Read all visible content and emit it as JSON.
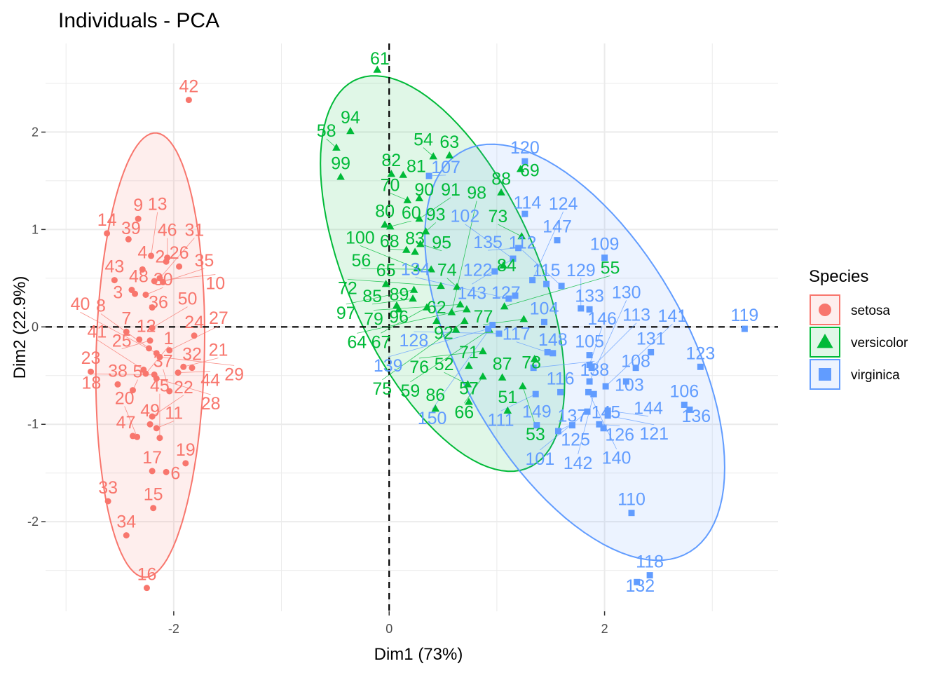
{
  "chart_data": {
    "type": "scatter",
    "title": "Individuals - PCA",
    "xlabel": "Dim1 (73%)",
    "ylabel": "Dim2 (22.9%)",
    "xlim": [
      -3.19,
      3.61
    ],
    "ylim": [
      -2.92,
      2.91
    ],
    "xticks": [
      "-2",
      "0",
      "2"
    ],
    "yticks": [
      "-2",
      "-1",
      "0",
      "1",
      "2"
    ],
    "grid": true,
    "reference_lines": {
      "x": 0,
      "y": 0,
      "style": "dashed"
    },
    "ellipses": "95% confidence per group",
    "legend": {
      "title": "Species",
      "position": "right"
    },
    "series": [
      {
        "name": "setosa",
        "color": "#F8766D",
        "shape": "circle",
        "points": [
          [
            "1",
            -2.26,
            -0.48
          ],
          [
            "2",
            -2.07,
            0.67
          ],
          [
            "3",
            -2.36,
            0.34
          ],
          [
            "4",
            -2.29,
            0.59
          ],
          [
            "5",
            -2.38,
            -0.65
          ],
          [
            "6",
            -2.07,
            -1.49
          ],
          [
            "7",
            -2.44,
            -0.05
          ],
          [
            "8",
            -2.23,
            -0.22
          ],
          [
            "9",
            -2.33,
            1.11
          ],
          [
            "10",
            -2.18,
            0.47
          ],
          [
            "11",
            -2.16,
            -1.04
          ],
          [
            "12",
            -2.32,
            -0.13
          ],
          [
            "13",
            -2.21,
            0.73
          ],
          [
            "14",
            -2.62,
            0.96
          ],
          [
            "15",
            -2.19,
            -1.86
          ],
          [
            "16",
            -2.25,
            -2.68
          ],
          [
            "17",
            -2.2,
            -1.48
          ],
          [
            "18",
            -2.18,
            -0.49
          ],
          [
            "19",
            -1.89,
            -1.4
          ],
          [
            "20",
            -2.34,
            -1.13
          ],
          [
            "21",
            -1.91,
            -0.41
          ],
          [
            "22",
            -2.2,
            -0.92
          ],
          [
            "23",
            -2.77,
            -0.46
          ],
          [
            "24",
            -1.81,
            -0.09
          ],
          [
            "25",
            -2.22,
            -0.14
          ],
          [
            "26",
            -1.95,
            0.62
          ],
          [
            "27",
            -2.04,
            -0.24
          ],
          [
            "28",
            -2.16,
            -0.53
          ],
          [
            "29",
            -2.13,
            -0.31
          ],
          [
            "30",
            -2.26,
            0.33
          ],
          [
            "31",
            -2.13,
            0.5
          ],
          [
            "32",
            -1.83,
            -0.42
          ],
          [
            "33",
            -2.61,
            -1.79
          ],
          [
            "34",
            -2.44,
            -2.14
          ],
          [
            "35",
            -2.1,
            0.46
          ],
          [
            "36",
            -2.2,
            0.2
          ],
          [
            "37",
            -2.04,
            -0.66
          ],
          [
            "38",
            -2.52,
            -0.59
          ],
          [
            "39",
            -2.42,
            0.9
          ],
          [
            "40",
            -2.16,
            -0.27
          ],
          [
            "41",
            -2.28,
            -0.44
          ],
          [
            "42",
            -1.86,
            2.33
          ],
          [
            "43",
            -2.55,
            0.48
          ],
          [
            "44",
            -1.96,
            -0.47
          ],
          [
            "45",
            -2.13,
            -1.14
          ],
          [
            "46",
            -2.06,
            0.71
          ],
          [
            "47",
            -2.38,
            -1.12
          ],
          [
            "48",
            -2.39,
            0.38
          ],
          [
            "49",
            -2.22,
            -1.0
          ],
          [
            "50",
            -2.2,
            -0.01
          ]
        ]
      },
      {
        "name": "versicolor",
        "color": "#00BA38",
        "shape": "triangle",
        "points": [
          [
            "51",
            1.1,
            -0.86
          ],
          [
            "52",
            0.73,
            -0.59
          ],
          [
            "53",
            1.24,
            -0.61
          ],
          [
            "54",
            0.41,
            1.75
          ],
          [
            "55",
            1.07,
            0.21
          ],
          [
            "56",
            0.39,
            0.59
          ],
          [
            "57",
            0.74,
            -0.77
          ],
          [
            "58",
            -0.49,
            1.84
          ],
          [
            "59",
            0.93,
            -0.03
          ],
          [
            "60",
            0.01,
            1.03
          ],
          [
            "61",
            -0.11,
            2.64
          ],
          [
            "62",
            0.44,
            0.06
          ],
          [
            "63",
            0.56,
            1.76
          ],
          [
            "64",
            0.72,
            0.18
          ],
          [
            "65",
            -0.03,
            0.44
          ],
          [
            "66",
            0.87,
            -0.51
          ],
          [
            "67",
            0.35,
            0.2
          ],
          [
            "68",
            0.16,
            0.79
          ],
          [
            "69",
            1.22,
            1.62
          ],
          [
            "70",
            0.17,
            1.3
          ],
          [
            "71",
            0.74,
            -0.4
          ],
          [
            "72",
            0.48,
            0.42
          ],
          [
            "73",
            1.23,
            0.93
          ],
          [
            "74",
            0.63,
            0.41
          ],
          [
            "75",
            0.7,
            0.06
          ],
          [
            "76",
            0.87,
            -0.25
          ],
          [
            "77",
            1.25,
            0.08
          ],
          [
            "78",
            1.35,
            -0.33
          ],
          [
            "79",
            0.66,
            0.23
          ],
          [
            "80",
            -0.04,
            1.05
          ],
          [
            "81",
            0.13,
            1.56
          ],
          [
            "82",
            0.02,
            1.57
          ],
          [
            "83",
            0.24,
            0.77
          ],
          [
            "84",
            1.06,
            0.63
          ],
          [
            "85",
            0.22,
            0.29
          ],
          [
            "86",
            0.43,
            -0.84
          ],
          [
            "87",
            1.05,
            -0.52
          ],
          [
            "88",
            1.04,
            1.38
          ],
          [
            "89",
            0.07,
            0.22
          ],
          [
            "90",
            0.28,
            1.32
          ],
          [
            "91",
            0.28,
            1.11
          ],
          [
            "92",
            0.62,
            -0.03
          ],
          [
            "93",
            0.34,
            0.98
          ],
          [
            "94",
            -0.36,
            2.01
          ],
          [
            "95",
            0.29,
            0.85
          ],
          [
            "96",
            0.09,
            0.18
          ],
          [
            "97",
            0.23,
            0.38
          ],
          [
            "98",
            0.58,
            0.15
          ],
          [
            "99",
            -0.45,
            1.54
          ],
          [
            "100",
            0.26,
            0.6
          ]
        ]
      },
      {
        "name": "virginica",
        "color": "#619CFF",
        "shape": "square",
        "points": [
          [
            "101",
            1.84,
            -0.87
          ],
          [
            "102",
            1.15,
            0.7
          ],
          [
            "103",
            2.2,
            -0.56
          ],
          [
            "104",
            1.44,
            0.05
          ],
          [
            "105",
            1.86,
            -0.29
          ],
          [
            "106",
            2.74,
            -0.8
          ],
          [
            "107",
            0.37,
            1.55
          ],
          [
            "108",
            2.29,
            -0.42
          ],
          [
            "109",
            2.0,
            0.71
          ],
          [
            "110",
            2.25,
            -1.91
          ],
          [
            "111",
            1.36,
            -0.69
          ],
          [
            "112",
            1.6,
            0.42
          ],
          [
            "113",
            1.88,
            -0.42
          ],
          [
            "114",
            1.26,
            1.16
          ],
          [
            "115",
            1.46,
            0.44
          ],
          [
            "116",
            1.59,
            -0.67
          ],
          [
            "117",
            1.47,
            -0.26
          ],
          [
            "118",
            2.42,
            -2.55
          ],
          [
            "119",
            3.3,
            -0.02
          ],
          [
            "120",
            1.26,
            1.7
          ],
          [
            "121",
            2.03,
            -0.91
          ],
          [
            "122",
            0.98,
            0.57
          ],
          [
            "123",
            2.89,
            -0.41
          ],
          [
            "124",
            1.33,
            0.48
          ],
          [
            "125",
            1.7,
            -1.01
          ],
          [
            "126",
            1.95,
            -1.0
          ],
          [
            "127",
            1.17,
            0.32
          ],
          [
            "128",
            1.02,
            -0.07
          ],
          [
            "129",
            1.78,
            0.19
          ],
          [
            "130",
            1.86,
            -0.56
          ],
          [
            "131",
            2.43,
            -0.26
          ],
          [
            "132",
            2.3,
            -2.62
          ],
          [
            "133",
            1.86,
            0.18
          ],
          [
            "134",
            1.11,
            0.29
          ],
          [
            "135",
            1.2,
            0.81
          ],
          [
            "136",
            2.79,
            -0.85
          ],
          [
            "137",
            1.57,
            -1.07
          ],
          [
            "138",
            1.34,
            -0.42
          ],
          [
            "139",
            0.92,
            -0.02
          ],
          [
            "140",
            1.85,
            -0.67
          ],
          [
            "141",
            2.01,
            -0.61
          ],
          [
            "142",
            1.9,
            -0.69
          ],
          [
            "143",
            1.15,
            0.7
          ],
          [
            "144",
            2.03,
            -0.86
          ],
          [
            "145",
            1.99,
            -1.04
          ],
          [
            "146",
            1.86,
            -0.39
          ],
          [
            "147",
            1.56,
            0.89
          ],
          [
            "148",
            1.52,
            -0.27
          ],
          [
            "149",
            1.37,
            -1.01
          ],
          [
            "150",
            0.96,
            0.02
          ]
        ]
      }
    ]
  }
}
